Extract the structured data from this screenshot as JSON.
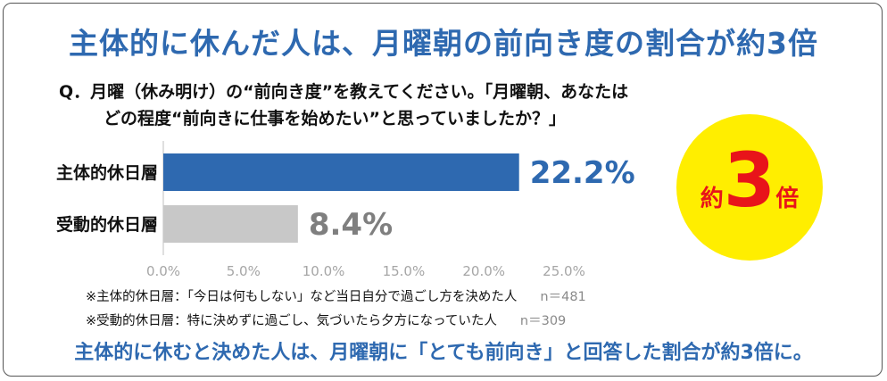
{
  "title": "主体的に休んだ人は、月曜朝の前向き度の割合が約3倍",
  "question": {
    "line1": "Q．月曜（休み明け）の“前向き度”を教えてください。「月曜朝、あなたは",
    "line2": "どの程度“前向きに仕事を始めたい”と思っていましたか？」"
  },
  "chart_data": {
    "type": "bar",
    "orientation": "horizontal",
    "categories": [
      "主体的休日層",
      "受動的休日層"
    ],
    "values": [
      22.2,
      8.4
    ],
    "value_labels": [
      "22.2%",
      "8.4%"
    ],
    "colors": [
      "#2e69b0",
      "#c8c8c8"
    ],
    "label_colors": [
      "#2e69b0",
      "#7f7f7f"
    ],
    "xlim": [
      0,
      25
    ],
    "ticks": [
      "0.0%",
      "5.0%",
      "10.0%",
      "15.0%",
      "20.0%",
      "25.0%"
    ],
    "tick_values": [
      0,
      5,
      10,
      15,
      20,
      25
    ],
    "grid": false,
    "legend": "none"
  },
  "notes": [
    {
      "text": "※主体的休日層：「今日は何もしない」など当日自分で過ごし方を決めた人",
      "n": "n＝481"
    },
    {
      "text": "※受動的休日層：特に決めずに過ごし、気づいたら夕方になっていた人",
      "n": "n＝309"
    }
  ],
  "badge": {
    "prefix": "約",
    "number": "3",
    "suffix": "倍"
  },
  "footer": "主体的に休むと決めた人は、月曜朝に「とても前向き」と回答した割合が約3倍に。"
}
